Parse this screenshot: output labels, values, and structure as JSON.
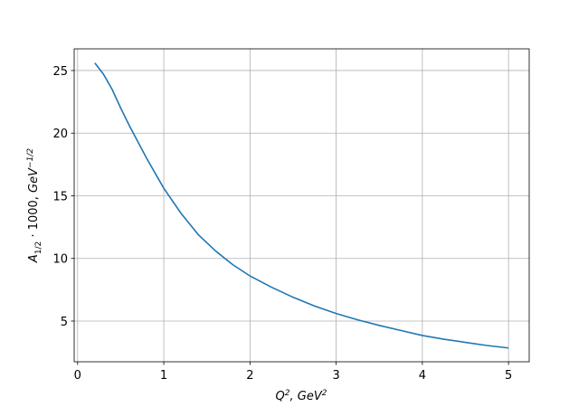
{
  "chart_data": {
    "type": "line",
    "xlabel": [
      "Q",
      "2",
      ", ",
      "GeV",
      "2"
    ],
    "ylabel": [
      "A",
      "1/2",
      " · 1000, ",
      "GeV",
      "−1/2"
    ],
    "x": [
      0.2,
      0.3,
      0.4,
      0.5,
      0.6,
      0.7,
      0.8,
      0.9,
      1.0,
      1.2,
      1.4,
      1.6,
      1.8,
      2.0,
      2.25,
      2.5,
      2.75,
      3.0,
      3.25,
      3.5,
      3.75,
      4.0,
      4.25,
      4.5,
      4.75,
      5.0
    ],
    "values": [
      25.6,
      24.7,
      23.5,
      22.0,
      20.6,
      19.3,
      18.0,
      16.8,
      15.6,
      13.6,
      11.9,
      10.6,
      9.5,
      8.6,
      7.7,
      6.9,
      6.2,
      5.6,
      5.1,
      4.65,
      4.25,
      3.85,
      3.55,
      3.3,
      3.05,
      2.85
    ],
    "color": "#1f77b4",
    "xlim": [
      -0.04,
      5.24
    ],
    "ylim": [
      1.75,
      26.73
    ],
    "xticks": [
      0,
      1,
      2,
      3,
      4,
      5
    ],
    "yticks": [
      5,
      10,
      15,
      20,
      25
    ],
    "grid": true
  }
}
